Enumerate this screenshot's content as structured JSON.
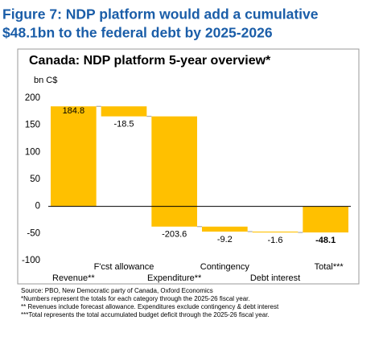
{
  "header": {
    "title_lines": [
      "Figure 7: NDP platform would add a cumulative",
      "$48.1bn to the federal debt by 2025-2026"
    ]
  },
  "chart_data": {
    "type": "waterfall",
    "title": "Canada: NDP platform 5-year overview*",
    "y_label": "bn C$",
    "categories": [
      "Revenue**",
      "F'cst allowance",
      "Expenditure**",
      "Contingency",
      "Debt interest",
      "Total***"
    ],
    "values": [
      184.8,
      -18.5,
      -203.6,
      -9.2,
      -1.6,
      -48.1
    ],
    "total_index": 5,
    "color": "#ffc000",
    "ylim": [
      -100,
      200
    ],
    "yticks": [
      -100,
      -50,
      0,
      50,
      100,
      150,
      200
    ],
    "grid": false
  },
  "footnotes": [
    "Source: PBO, New Democratic party of Canada, Oxford Economics",
    "*Numbers represent the totals for each category through the 2025-26 fiscal year.",
    "** Revenues include forecast allowance. Expenditures exclude contingency & debt interest",
    "***Total represents the total accumulated budget deficit through the 2025-26 fiscal year."
  ]
}
